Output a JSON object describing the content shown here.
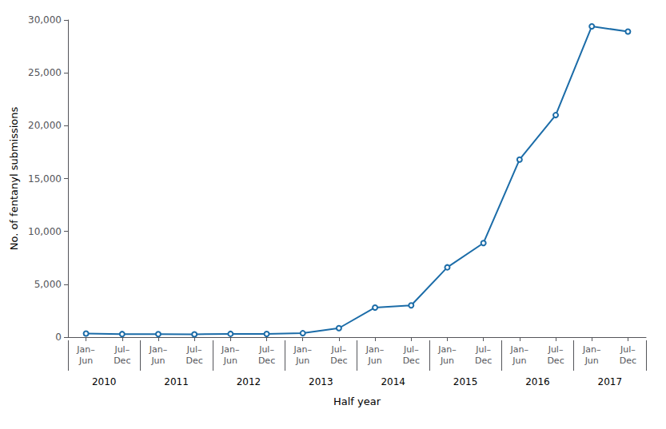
{
  "chart_data": {
    "type": "line",
    "categories": [
      "Jan–\nJun",
      "Jul–\nDec",
      "Jan–\nJun",
      "Jul–\nDec",
      "Jan–\nJun",
      "Jul–\nDec",
      "Jan–\nJun",
      "Jul–\nDec",
      "Jan–\nJun",
      "Jul–\nDec",
      "Jan–\nJun",
      "Jul–\nDec",
      "Jan–\nJun",
      "Jul–\nDec",
      "Jan–\nJun",
      "Jul–\nDec"
    ],
    "annotations": [
      "2010",
      "2011",
      "2012",
      "2013",
      "2014",
      "2015",
      "2016",
      "2017"
    ],
    "values": [
      336,
      290,
      280,
      270,
      310,
      300,
      370,
      850,
      2800,
      3000,
      6600,
      8900,
      16800,
      21000,
      29400,
      28900
    ],
    "color": "#1b6ca8",
    "xlabel": "Half year",
    "ylabel": "No. of fentanyl submissions",
    "ylim": [
      0,
      30000
    ],
    "yticks": [
      0,
      {
        "value": 5000,
        "label": "5,000"
      },
      {
        "value": 10000,
        "label": "10,000"
      },
      {
        "value": 15000,
        "label": "15,000"
      },
      {
        "value": 20000,
        "label": "20,000"
      },
      {
        "value": 25000,
        "label": "25,000"
      },
      {
        "value": 30000,
        "label": "30,000"
      }
    ],
    "grid": false
  }
}
